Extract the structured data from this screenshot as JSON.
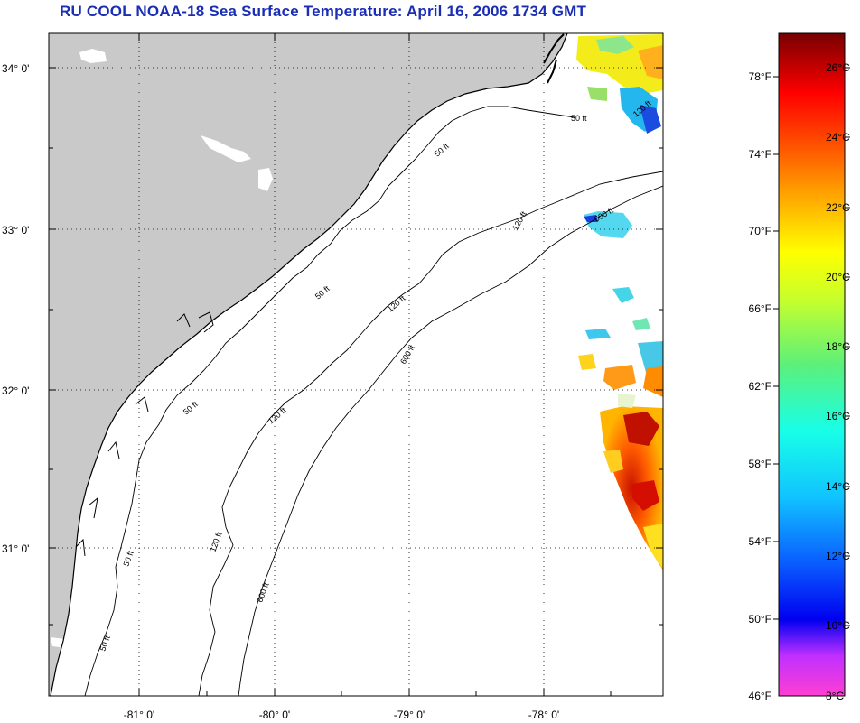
{
  "title": "RU COOL  NOAA-18  Sea Surface Temperature:  April 16, 2006 1734 GMT",
  "axes": {
    "y_labels": [
      "34° 0'",
      "33° 0'",
      "32° 0'",
      "31° 0'"
    ],
    "x_labels": [
      "-81° 0'",
      "-80° 0'",
      "-79° 0'",
      "-78° 0'"
    ]
  },
  "contours": {
    "c50_a": "50 ft",
    "c50_b": "50 ft",
    "c50_c": "50 ft",
    "c50_d": "50 ft",
    "c50_e": "50 ft",
    "c50_f": "50 ft",
    "c120_a": "120 ft",
    "c120_b": "120 ft",
    "c120_c": "120 ft",
    "c120_d": "120 ft",
    "c120_e": "120 ft",
    "c600_a": "600 ft",
    "c600_b": "600 ft",
    "c600_c": "600 ft"
  },
  "colorbar": {
    "fahrenheit": [
      "78°F",
      "74°F",
      "70°F",
      "66°F",
      "62°F",
      "58°F",
      "54°F",
      "50°F",
      "46°F"
    ],
    "celsius": [
      "26°C",
      "24°C",
      "22°C",
      "20°C",
      "18°C",
      "16°C",
      "14°C",
      "12°C",
      "10°C",
      "8°C"
    ]
  },
  "colors": {
    "title": "#1a2eb5",
    "land": "#c9c9c9",
    "grid": "#000000"
  }
}
